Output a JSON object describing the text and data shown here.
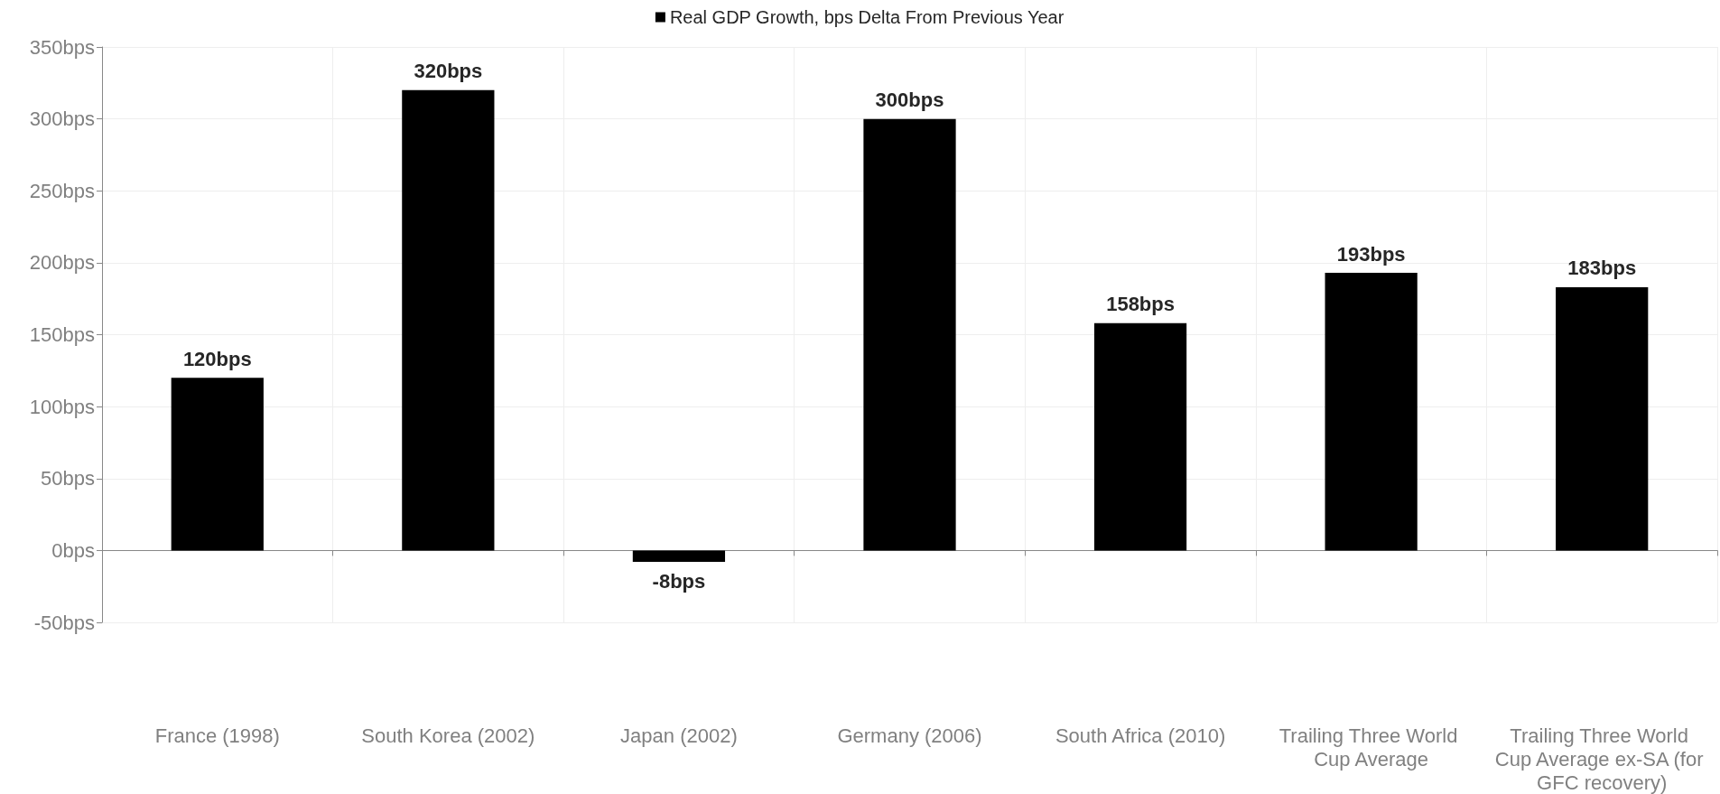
{
  "chart_data": {
    "type": "bar",
    "categories": [
      "France (1998)",
      "South Korea (2002)",
      "Japan (2002)",
      "Germany (2006)",
      "South Africa (2010)",
      "Trailing Three World Cup Average",
      "Trailing Three World Cup Average ex-SA (for GFC recovery)"
    ],
    "series": [
      {
        "name": "Real GDP Growth, bps Delta From Previous Year",
        "color": "#000000",
        "values": [
          120,
          320,
          -8,
          300,
          158,
          193,
          183
        ],
        "value_labels": [
          "120bps",
          "320bps",
          "-8bps",
          "300bps",
          "158bps",
          "193bps",
          "183bps"
        ]
      }
    ],
    "ylim": [
      -50,
      350
    ],
    "yticks": [
      {
        "value": -50,
        "label": "-50bps"
      },
      {
        "value": 0,
        "label": "0bps"
      },
      {
        "value": 50,
        "label": "50bps"
      },
      {
        "value": 100,
        "label": "100bps"
      },
      {
        "value": 150,
        "label": "150bps"
      },
      {
        "value": 200,
        "label": "200bps"
      },
      {
        "value": 250,
        "label": "250bps"
      },
      {
        "value": 300,
        "label": "300bps"
      },
      {
        "value": 350,
        "label": "350bps"
      }
    ],
    "grid": true,
    "legend": "top"
  }
}
